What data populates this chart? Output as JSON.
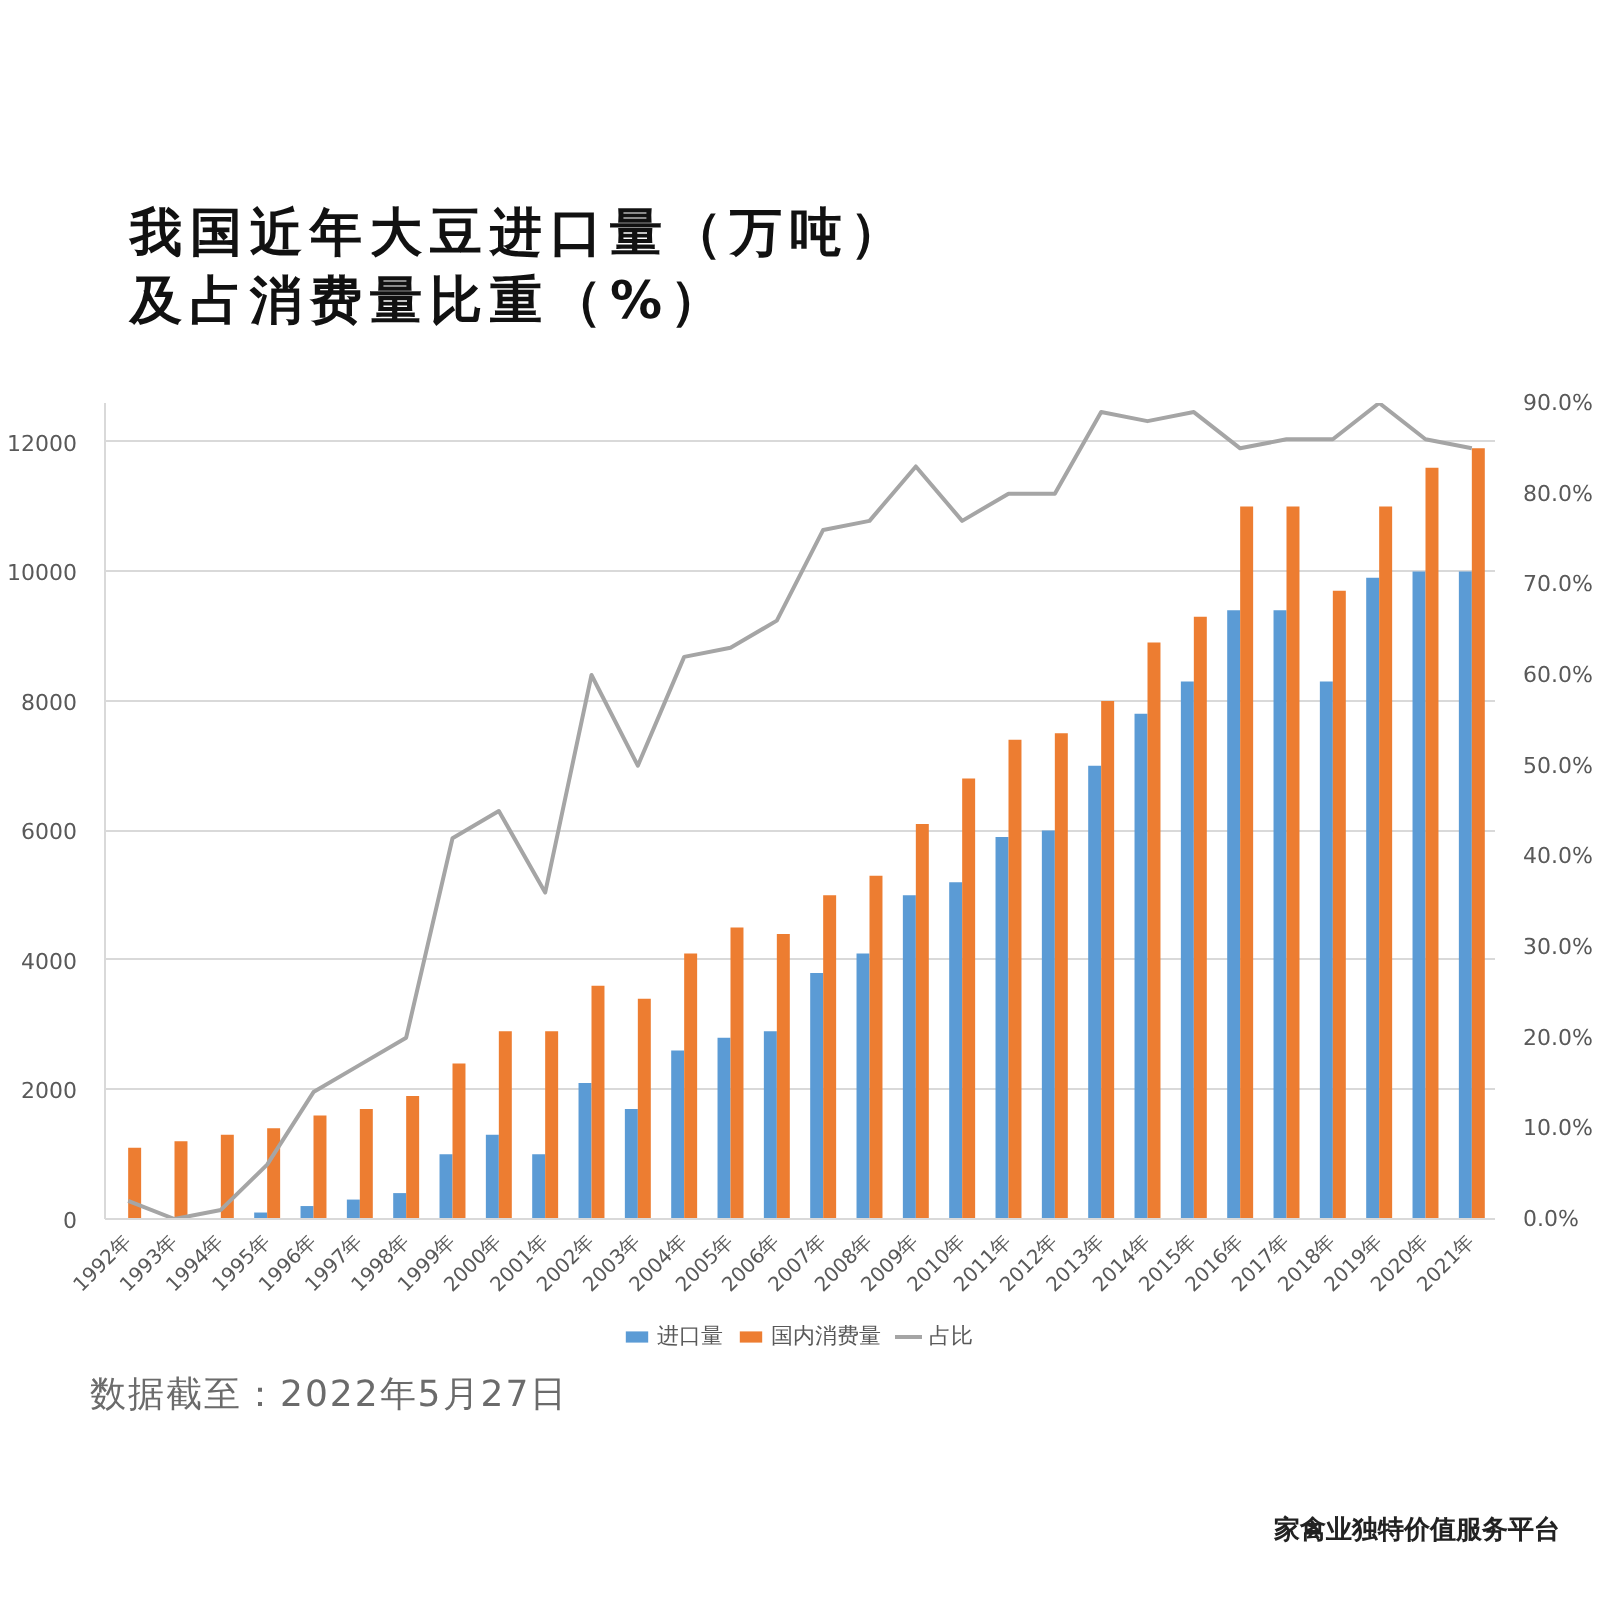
{
  "chart_data": {
    "type": "bar",
    "title": "我国近年大豆进口量（万吨）及占消费量比重（%）",
    "categories": [
      "1992年",
      "1993年",
      "1994年",
      "1995年",
      "1996年",
      "1997年",
      "1998年",
      "1999年",
      "2000年",
      "2001年",
      "2002年",
      "2003年",
      "2004年",
      "2005年",
      "2006年",
      "2007年",
      "2008年",
      "2009年",
      "2010年",
      "2011年",
      "2012年",
      "2013年",
      "2014年",
      "2015年",
      "2016年",
      "2017年",
      "2018年",
      "2019年",
      "2020年",
      "2021年"
    ],
    "series": [
      {
        "name": "进口量",
        "color": "#5b9bd5",
        "values": [
          null,
          null,
          null,
          100,
          200,
          300,
          400,
          1000,
          1300,
          1000,
          2100,
          1700,
          2600,
          2800,
          2900,
          3800,
          4100,
          5000,
          5200,
          5900,
          6000,
          7000,
          7800,
          8300,
          9400,
          9400,
          8300,
          9900,
          10000,
          10000
        ]
      },
      {
        "name": "国内消费量",
        "color": "#ed7d31",
        "values": [
          1100,
          1200,
          1300,
          1400,
          1600,
          1700,
          1900,
          2400,
          2900,
          2900,
          3600,
          3400,
          4100,
          4500,
          4400,
          5000,
          5300,
          6100,
          6800,
          7400,
          7500,
          8000,
          8900,
          9300,
          11000,
          11000,
          9700,
          11000,
          11600,
          11900
        ]
      },
      {
        "name": "占比",
        "type": "line",
        "axis": "y2",
        "color": "#a5a5a5",
        "values": [
          2,
          0,
          1,
          6,
          14,
          17,
          20,
          42,
          45,
          36,
          60,
          50,
          62,
          63,
          66,
          76,
          77,
          83,
          77,
          80,
          80,
          89,
          88,
          89,
          85,
          86,
          86,
          90,
          86,
          85
        ]
      }
    ],
    "ylim": [
      0,
      12600
    ],
    "yticks": [
      0,
      2000,
      4000,
      6000,
      8000,
      10000,
      12000
    ],
    "y2lim": [
      0,
      90
    ],
    "y2ticks": [
      {
        "value": 0,
        "label": "0.0%"
      },
      {
        "value": 10,
        "label": "10.0%"
      },
      {
        "value": 20,
        "label": "20.0%"
      },
      {
        "value": 30,
        "label": "30.0%"
      },
      {
        "value": 40,
        "label": "40.0%"
      },
      {
        "value": 50,
        "label": "50.0%"
      },
      {
        "value": 60,
        "label": "60.0%"
      },
      {
        "value": 70,
        "label": "70.0%"
      },
      {
        "value": 80,
        "label": "80.0%"
      },
      {
        "value": 90,
        "label": "90.0%"
      }
    ],
    "grid": "y",
    "legend": "bottom",
    "annotations": [
      "数据截至：2022年5月27日",
      "家禽业独特价值服务平台"
    ]
  }
}
